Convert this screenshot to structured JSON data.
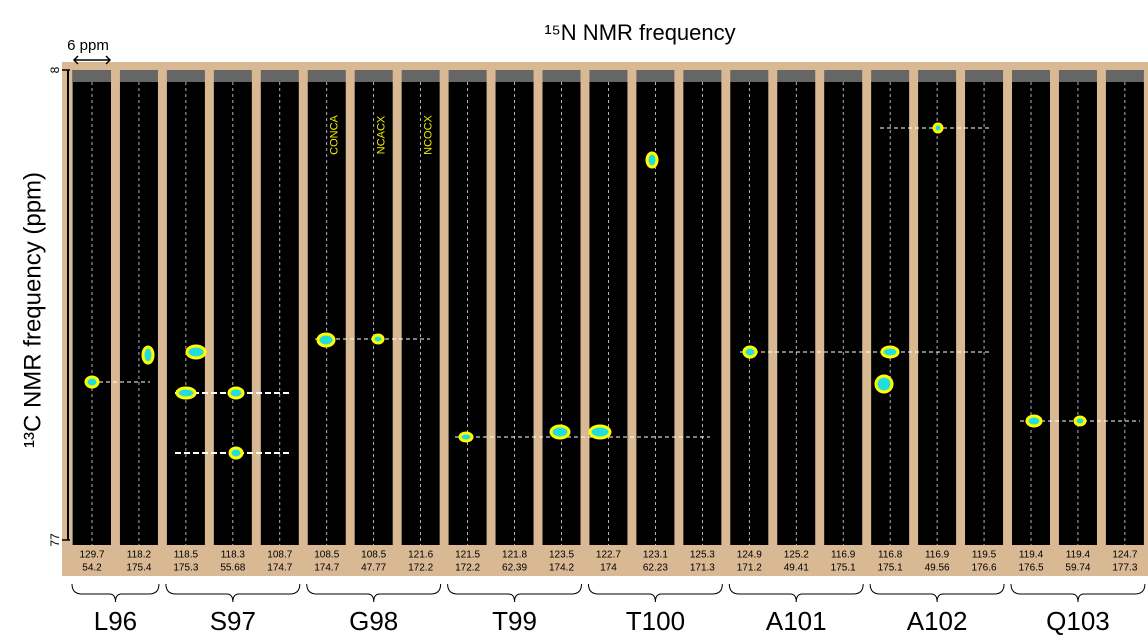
{
  "chart_data": {
    "type": "strips",
    "title": "¹⁵N NMR frequency",
    "y_label": "¹³C NMR frequency (ppm)",
    "scale_bar": "6 ppm",
    "ylim": [
      8,
      77
    ],
    "yticks": [
      8,
      77
    ],
    "experiments": [
      "CONCA",
      "NCACX",
      "NCOCX"
    ],
    "strips": [
      [
        "129.7",
        "54.2"
      ],
      [
        "118.2",
        "175.4"
      ],
      [
        "118.5",
        "175.3"
      ],
      [
        "118.3",
        "55.68"
      ],
      [
        "108.7",
        "174.7"
      ],
      [
        "108.5",
        "174.7"
      ],
      [
        "108.5",
        "47.77"
      ],
      [
        "121.6",
        "172.2"
      ],
      [
        "121.5",
        "172.2"
      ],
      [
        "121.8",
        "62.39"
      ],
      [
        "123.5",
        "174.2"
      ],
      [
        "122.7",
        "174"
      ],
      [
        "123.1",
        "62.23"
      ],
      [
        "125.3",
        "171.3"
      ],
      [
        "124.9",
        "171.2"
      ],
      [
        "125.2",
        "49.41"
      ],
      [
        "116.9",
        "175.1"
      ],
      [
        "116.8",
        "175.1"
      ],
      [
        "116.9",
        "49.56"
      ],
      [
        "119.5",
        "176.6"
      ],
      [
        "119.4",
        "176.5"
      ],
      [
        "119.4",
        "59.74"
      ],
      [
        "124.7",
        "177.3"
      ]
    ],
    "groups": [
      {
        "name": "L96",
        "count": 2
      },
      {
        "name": "S97",
        "count": 3
      },
      {
        "name": "G98",
        "count": 3
      },
      {
        "name": "T99",
        "count": 3
      },
      {
        "name": "T100",
        "count": 3
      },
      {
        "name": "A101",
        "count": 3
      },
      {
        "name": "A102",
        "count": 3
      },
      {
        "name": "Q103",
        "count": 3
      }
    ]
  }
}
